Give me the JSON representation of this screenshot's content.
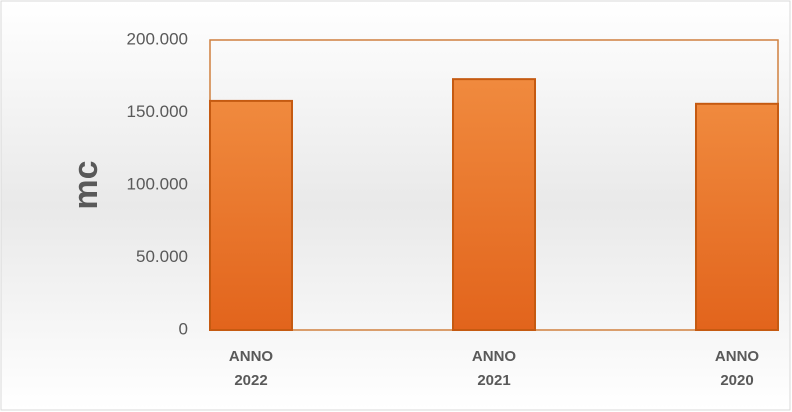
{
  "chart_data": {
    "type": "bar",
    "ylabel": "mc",
    "categories": [
      "ANNO 2022",
      "ANNO 2021",
      "ANNO 2020"
    ],
    "values": [
      158000,
      173000,
      156000
    ],
    "color": "#ed7d31",
    "ylim": [
      0,
      200000
    ],
    "yticks": [
      0,
      {
        "value": 50000,
        "label": "50.000"
      },
      {
        "value": 100000,
        "label": "100.000"
      },
      {
        "value": 150000,
        "label": "150.000"
      },
      {
        "value": 200000,
        "label": "200.000"
      }
    ]
  }
}
